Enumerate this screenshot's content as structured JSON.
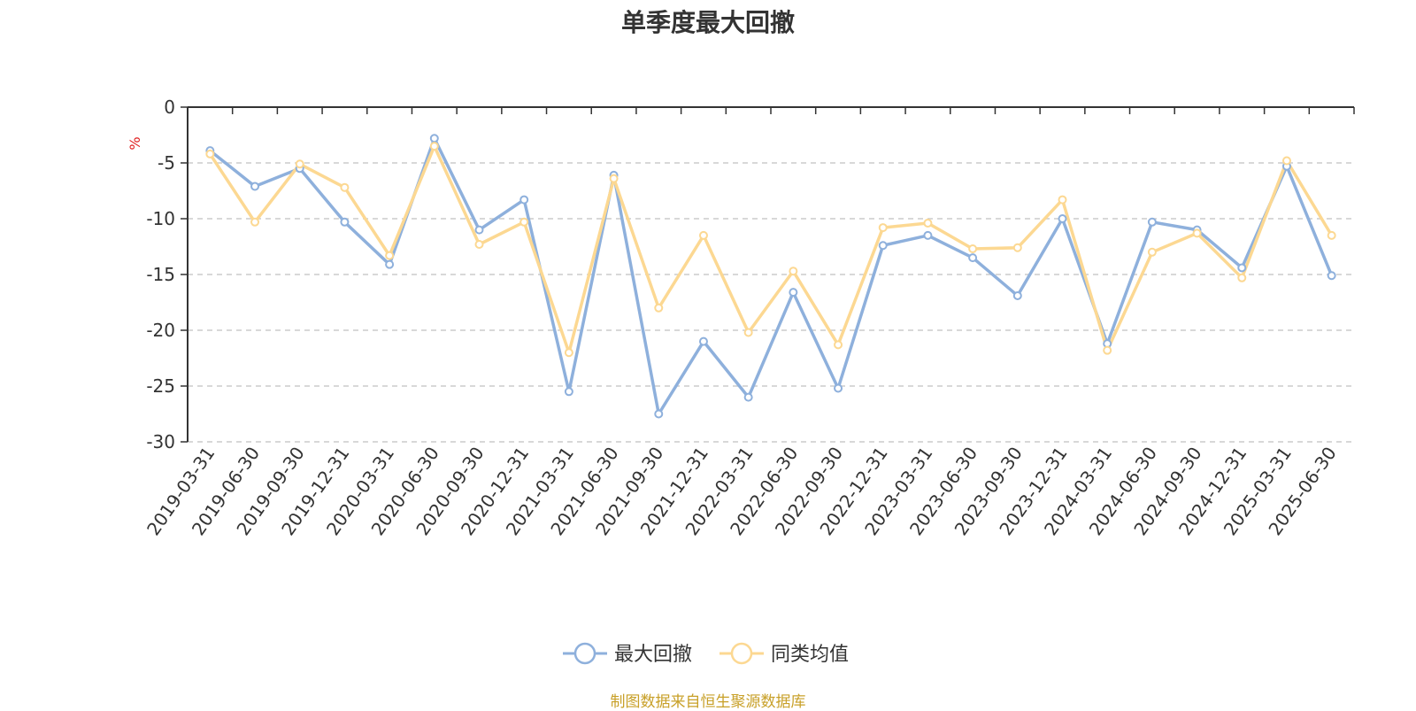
{
  "chart_data": {
    "type": "line",
    "title": "单季度最大回撤",
    "ylabel": "%",
    "ylim": [
      -30,
      0
    ],
    "yticks": [
      0,
      -5,
      -10,
      -15,
      -20,
      -25,
      -30
    ],
    "grid": true,
    "legend_position": "bottom-center",
    "categories": [
      "2019-03-31",
      "2019-06-30",
      "2019-09-30",
      "2019-12-31",
      "2020-03-31",
      "2020-06-30",
      "2020-09-30",
      "2020-12-31",
      "2021-03-31",
      "2021-06-30",
      "2021-09-30",
      "2021-12-31",
      "2022-03-31",
      "2022-06-30",
      "2022-09-30",
      "2022-12-31",
      "2023-03-31",
      "2023-06-30",
      "2023-09-30",
      "2023-12-31",
      "2024-03-31",
      "2024-06-30",
      "2024-09-30",
      "2024-12-31",
      "2025-03-31",
      "2025-06-30"
    ],
    "series": [
      {
        "name": "最大回撤",
        "color": "#8eb0dc",
        "values": [
          -3.9,
          -7.1,
          -5.5,
          -10.3,
          -14.1,
          -2.8,
          -11.0,
          -8.3,
          -25.5,
          -6.1,
          -27.5,
          -21.0,
          -26.0,
          -16.6,
          -25.2,
          -12.4,
          -11.5,
          -13.5,
          -16.9,
          -10.0,
          -21.2,
          -10.3,
          -11.0,
          -14.4,
          -5.3,
          -15.1
        ]
      },
      {
        "name": "同类均值",
        "color": "#fcd892",
        "values": [
          -4.2,
          -10.3,
          -5.1,
          -7.2,
          -13.3,
          -3.5,
          -12.3,
          -10.3,
          -22.0,
          -6.4,
          -18.0,
          -11.5,
          -20.2,
          -14.7,
          -21.3,
          -10.8,
          -10.4,
          -12.7,
          -12.6,
          -8.3,
          -21.8,
          -13.0,
          -11.3,
          -15.3,
          -4.8,
          -11.5
        ]
      }
    ]
  },
  "footer": {
    "source": "制图数据来自恒生聚源数据库"
  }
}
